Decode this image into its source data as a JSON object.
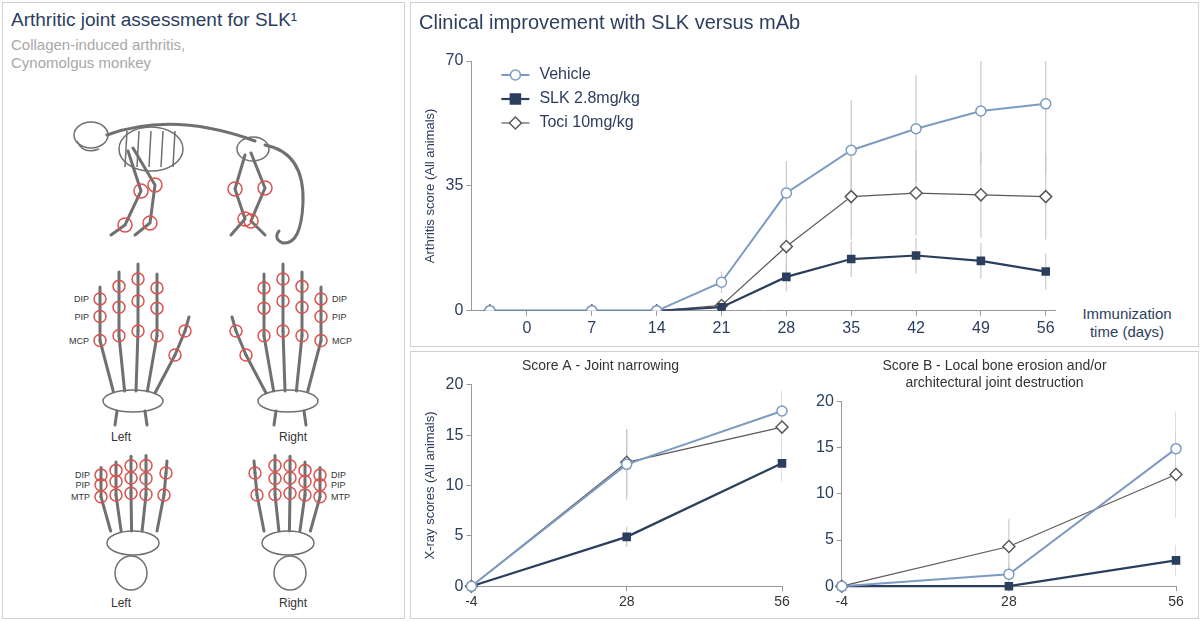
{
  "diagram": {
    "title": "Arthritic joint assessment for SLK¹",
    "subtitle": "Collagen-induced arthritis, Cynomolgus monkey",
    "hands": {
      "joint_labels": [
        "DIP",
        "PIP",
        "MCP"
      ],
      "side_labels": [
        "Left",
        "Right"
      ]
    },
    "feet": {
      "joint_labels": [
        "DIP",
        "PIP",
        "MTP"
      ],
      "side_labels": [
        "Left",
        "Right"
      ]
    }
  },
  "chart_data": [
    {
      "type": "line",
      "title": "Clinical improvement with SLK versus mAb",
      "x_label": "Immunization time (days)",
      "y_label": "Arthritis score (All animals)",
      "x": [
        -4,
        7,
        14,
        21,
        28,
        35,
        42,
        49,
        56
      ],
      "xlim": [
        -6,
        57
      ],
      "xticks": [
        0,
        7,
        14,
        21,
        28,
        35,
        42,
        49,
        56
      ],
      "ylim": [
        0,
        70
      ],
      "yticks": [
        0,
        35,
        70
      ],
      "grid": false,
      "legend": "upper left",
      "series": [
        {
          "name": "Vehicle",
          "color": "#7d9bc1",
          "marker": "open_circle",
          "values": [
            0,
            0,
            0,
            8,
            33,
            45,
            51,
            56,
            58
          ],
          "errors": [
            0,
            0,
            0,
            3,
            9,
            14,
            15,
            15,
            19
          ]
        },
        {
          "name": "SLK 2.8mg/kg",
          "color": "#2c3e5e",
          "marker": "square",
          "values": [
            0,
            0,
            0,
            1,
            9.5,
            14.5,
            15.5,
            14,
            11
          ],
          "errors": [
            0,
            0,
            0,
            1,
            4,
            5,
            5,
            5,
            5
          ]
        },
        {
          "name": "Toci 10mg/kg",
          "color": "#5a5a5a",
          "marker": "open_diamond",
          "values": [
            0,
            0,
            0,
            1.5,
            18,
            32,
            33,
            32.5,
            32
          ],
          "errors": [
            0,
            0,
            0,
            1,
            8,
            12,
            12,
            12,
            12
          ]
        }
      ]
    },
    {
      "type": "line",
      "title": "Score A - Joint narrowing",
      "y_label": "X-ray scores (All animals)",
      "categories": [
        "-4",
        "28",
        "56"
      ],
      "ylim": [
        0,
        20
      ],
      "yticks": [
        0,
        5,
        10,
        15,
        20
      ],
      "grid": false,
      "series": [
        {
          "color": "#7d9bc1",
          "marker": "open_circle",
          "values": [
            0,
            12.1,
            17.4
          ],
          "errors": [
            0,
            3.5,
            2
          ]
        },
        {
          "color": "#2c3e5e",
          "marker": "square",
          "values": [
            0,
            4.9,
            12.2
          ],
          "errors": [
            0,
            1,
            1.8
          ]
        },
        {
          "color": "#5a5a5a",
          "marker": "open_diamond",
          "values": [
            0,
            12.3,
            15.8
          ],
          "errors": [
            0,
            3.3,
            2
          ]
        }
      ]
    },
    {
      "type": "line",
      "title": "Score B - Local bone erosion and/or architectural joint destruction",
      "categories": [
        "-4",
        "28",
        "56"
      ],
      "ylim": [
        0,
        20
      ],
      "yticks": [
        0,
        5,
        10,
        15,
        20
      ],
      "grid": false,
      "series": [
        {
          "color": "#7d9bc1",
          "marker": "open_circle",
          "values": [
            0,
            1.3,
            14.9
          ],
          "errors": [
            0,
            1,
            4
          ]
        },
        {
          "color": "#2c3e5e",
          "marker": "square",
          "values": [
            0,
            0,
            2.8
          ],
          "errors": [
            0,
            0,
            1.7
          ]
        },
        {
          "color": "#5a5a5a",
          "marker": "open_diamond",
          "values": [
            0,
            4.3,
            12.1
          ],
          "errors": [
            0,
            3,
            4.7
          ]
        }
      ]
    }
  ]
}
